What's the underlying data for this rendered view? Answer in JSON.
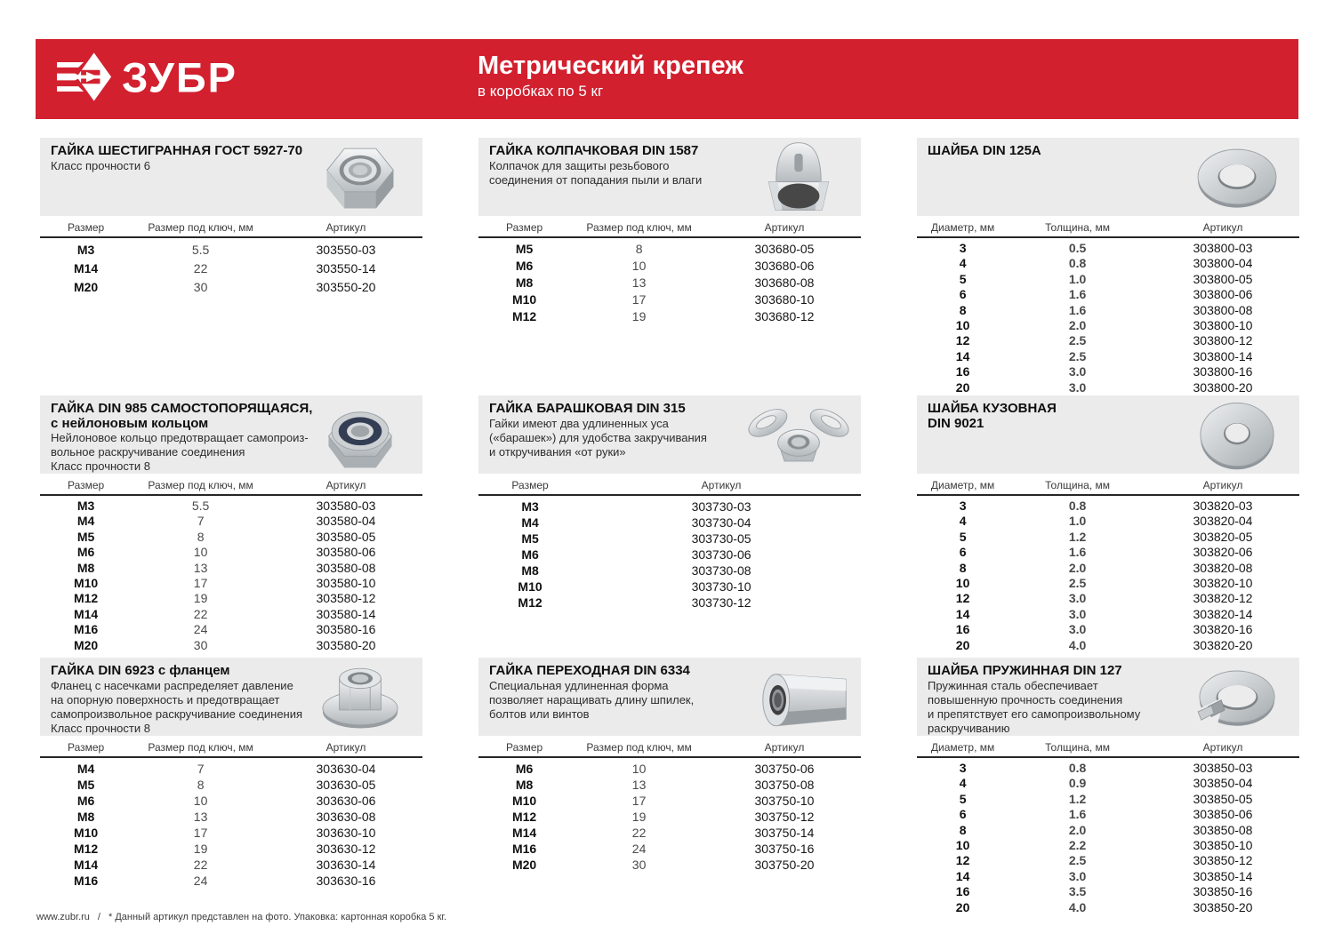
{
  "header": {
    "brand": "ЗУБР",
    "title": "Метрический крепеж",
    "subtitle": "в коробках по 5 кг"
  },
  "colors": {
    "accent": "#d2202f",
    "card_head_bg": "#ebebeb"
  },
  "footer": {
    "site": "www.zubr.ru",
    "separator": "/",
    "note": "* Данный артикул представлен на фото. Упаковка: картонная коробка 5 кг."
  },
  "sections": [
    {
      "id": "hex-nut",
      "title_lines": [
        "ГАЙКА ШЕСТИГРАННАЯ ГОСТ 5927-70"
      ],
      "description_lines": [
        "Класс прочности 6"
      ],
      "photo": "hex-nut",
      "columns": [
        "Размер",
        "Размер под ключ, мм",
        "Артикул"
      ],
      "emphasized_columns": [
        0
      ],
      "rows": [
        [
          "M3",
          "5.5",
          "303550-03"
        ],
        [
          "M14",
          "22",
          "303550-14"
        ],
        [
          "M20",
          "30",
          "303550-20"
        ]
      ]
    },
    {
      "id": "cap-nut",
      "title_lines": [
        "ГАЙКА КОЛПАЧКОВАЯ DIN 1587"
      ],
      "description_lines": [
        "Колпачок для защиты резьбового",
        "соединения от попадания пыли и влаги"
      ],
      "photo": "cap-nut",
      "columns": [
        "Размер",
        "Размер под ключ, мм",
        "Артикул"
      ],
      "emphasized_columns": [
        0
      ],
      "rows": [
        [
          "M5",
          "8",
          "303680-05"
        ],
        [
          "M6",
          "10",
          "303680-06"
        ],
        [
          "M8",
          "13",
          "303680-08"
        ],
        [
          "M10",
          "17",
          "303680-10"
        ],
        [
          "M12",
          "19",
          "303680-12"
        ]
      ]
    },
    {
      "id": "washer-din125a",
      "title_lines": [
        "ШАЙБА DIN 125A"
      ],
      "description_lines": [],
      "photo": "flat-washer",
      "columns": [
        "Диаметр, мм",
        "Толщина, мм",
        "Артикул"
      ],
      "emphasized_columns": [
        0,
        1
      ],
      "rows": [
        [
          "3",
          "0.5",
          "303800-03"
        ],
        [
          "4",
          "0.8",
          "303800-04"
        ],
        [
          "5",
          "1.0",
          "303800-05"
        ],
        [
          "6",
          "1.6",
          "303800-06"
        ],
        [
          "8",
          "1.6",
          "303800-08"
        ],
        [
          "10",
          "2.0",
          "303800-10"
        ],
        [
          "12",
          "2.5",
          "303800-12"
        ],
        [
          "14",
          "2.5",
          "303800-14"
        ],
        [
          "16",
          "3.0",
          "303800-16"
        ],
        [
          "20",
          "3.0",
          "303800-20"
        ]
      ]
    },
    {
      "id": "lock-nut-din985",
      "title_lines": [
        "ГАЙКА DIN 985 САМОСТОПОРЯЩАЯСЯ,",
        "с нейлоновым кольцом"
      ],
      "description_lines": [
        "Нейлоновое кольцо предотвращает самопроиз-",
        "вольное раскручивание соединения",
        "Класс прочности 8"
      ],
      "photo": "lock-nut",
      "columns": [
        "Размер",
        "Размер под ключ, мм",
        "Артикул"
      ],
      "emphasized_columns": [
        0
      ],
      "rows": [
        [
          "M3",
          "5.5",
          "303580-03"
        ],
        [
          "M4",
          "7",
          "303580-04"
        ],
        [
          "M5",
          "8",
          "303580-05"
        ],
        [
          "M6",
          "10",
          "303580-06"
        ],
        [
          "M8",
          "13",
          "303580-08"
        ],
        [
          "M10",
          "17",
          "303580-10"
        ],
        [
          "M12",
          "19",
          "303580-12"
        ],
        [
          "M14",
          "22",
          "303580-14"
        ],
        [
          "M16",
          "24",
          "303580-16"
        ],
        [
          "M20",
          "30",
          "303580-20"
        ]
      ]
    },
    {
      "id": "wing-nut-din315",
      "title_lines": [
        "ГАЙКА БАРАШКОВАЯ DIN 315"
      ],
      "description_lines": [
        "Гайки имеют два удлиненных уса",
        "(«барашек») для удобства закручивания",
        "и откручивания «от руки»"
      ],
      "photo": "wing-nut",
      "columns": [
        "Размер",
        "Артикул"
      ],
      "emphasized_columns": [
        0
      ],
      "rows": [
        [
          "M3",
          "303730-03"
        ],
        [
          "M4",
          "303730-04"
        ],
        [
          "M5",
          "303730-05"
        ],
        [
          "M6",
          "303730-06"
        ],
        [
          "M8",
          "303730-08"
        ],
        [
          "M10",
          "303730-10"
        ],
        [
          "M12",
          "303730-12"
        ]
      ]
    },
    {
      "id": "fender-washer-din9021",
      "title_lines": [
        "ШАЙБА КУЗОВНАЯ",
        "DIN 9021"
      ],
      "description_lines": [],
      "photo": "fender-washer",
      "columns": [
        "Диаметр, мм",
        "Толщина, мм",
        "Артикул"
      ],
      "emphasized_columns": [
        0,
        1
      ],
      "rows": [
        [
          "3",
          "0.8",
          "303820-03"
        ],
        [
          "4",
          "1.0",
          "303820-04"
        ],
        [
          "5",
          "1.2",
          "303820-05"
        ],
        [
          "6",
          "1.6",
          "303820-06"
        ],
        [
          "8",
          "2.0",
          "303820-08"
        ],
        [
          "10",
          "2.5",
          "303820-10"
        ],
        [
          "12",
          "3.0",
          "303820-12"
        ],
        [
          "14",
          "3.0",
          "303820-14"
        ],
        [
          "16",
          "3.0",
          "303820-16"
        ],
        [
          "20",
          "4.0",
          "303820-20"
        ]
      ]
    },
    {
      "id": "flange-nut-din6923",
      "title_lines": [
        "ГАЙКА DIN 6923 с фланцем"
      ],
      "description_lines": [
        "Фланец с насечками распределяет давление",
        "на опорную поверхность и предотвращает",
        "самопроизвольное раскручивание соединения",
        "Класс прочности 8"
      ],
      "photo": "flange-nut",
      "columns": [
        "Размер",
        "Размер под ключ, мм",
        "Артикул"
      ],
      "emphasized_columns": [
        0
      ],
      "rows": [
        [
          "M4",
          "7",
          "303630-04"
        ],
        [
          "M5",
          "8",
          "303630-05"
        ],
        [
          "M6",
          "10",
          "303630-06"
        ],
        [
          "M8",
          "13",
          "303630-08"
        ],
        [
          "M10",
          "17",
          "303630-10"
        ],
        [
          "M12",
          "19",
          "303630-12"
        ],
        [
          "M14",
          "22",
          "303630-14"
        ],
        [
          "M16",
          "24",
          "303630-16"
        ]
      ]
    },
    {
      "id": "coupling-nut-din6334",
      "title_lines": [
        "ГАЙКА ПЕРЕХОДНАЯ DIN 6334"
      ],
      "description_lines": [
        "Специальная удлиненная форма",
        "позволяет наращивать длину шпилек,",
        "болтов или винтов"
      ],
      "photo": "coupling-nut",
      "columns": [
        "Размер",
        "Размер под ключ, мм",
        "Артикул"
      ],
      "emphasized_columns": [
        0
      ],
      "rows": [
        [
          "M6",
          "10",
          "303750-06"
        ],
        [
          "M8",
          "13",
          "303750-08"
        ],
        [
          "M10",
          "17",
          "303750-10"
        ],
        [
          "M12",
          "19",
          "303750-12"
        ],
        [
          "M14",
          "22",
          "303750-14"
        ],
        [
          "M16",
          "24",
          "303750-16"
        ],
        [
          "M20",
          "30",
          "303750-20"
        ]
      ]
    },
    {
      "id": "spring-washer-din127",
      "title_lines": [
        "ШАЙБА ПРУЖИННАЯ DIN 127"
      ],
      "description_lines": [
        "Пружинная сталь обеспечивает",
        "повышенную прочность соединения",
        "и препятствует его самопроизвольному",
        "раскручиванию"
      ],
      "photo": "spring-washer",
      "columns": [
        "Диаметр, мм",
        "Толщина, мм",
        "Артикул"
      ],
      "emphasized_columns": [
        0,
        1
      ],
      "rows": [
        [
          "3",
          "0.8",
          "303850-03"
        ],
        [
          "4",
          "0.9",
          "303850-04"
        ],
        [
          "5",
          "1.2",
          "303850-05"
        ],
        [
          "6",
          "1.6",
          "303850-06"
        ],
        [
          "8",
          "2.0",
          "303850-08"
        ],
        [
          "10",
          "2.2",
          "303850-10"
        ],
        [
          "12",
          "2.5",
          "303850-12"
        ],
        [
          "14",
          "3.0",
          "303850-14"
        ],
        [
          "16",
          "3.5",
          "303850-16"
        ],
        [
          "20",
          "4.0",
          "303850-20"
        ]
      ]
    }
  ]
}
